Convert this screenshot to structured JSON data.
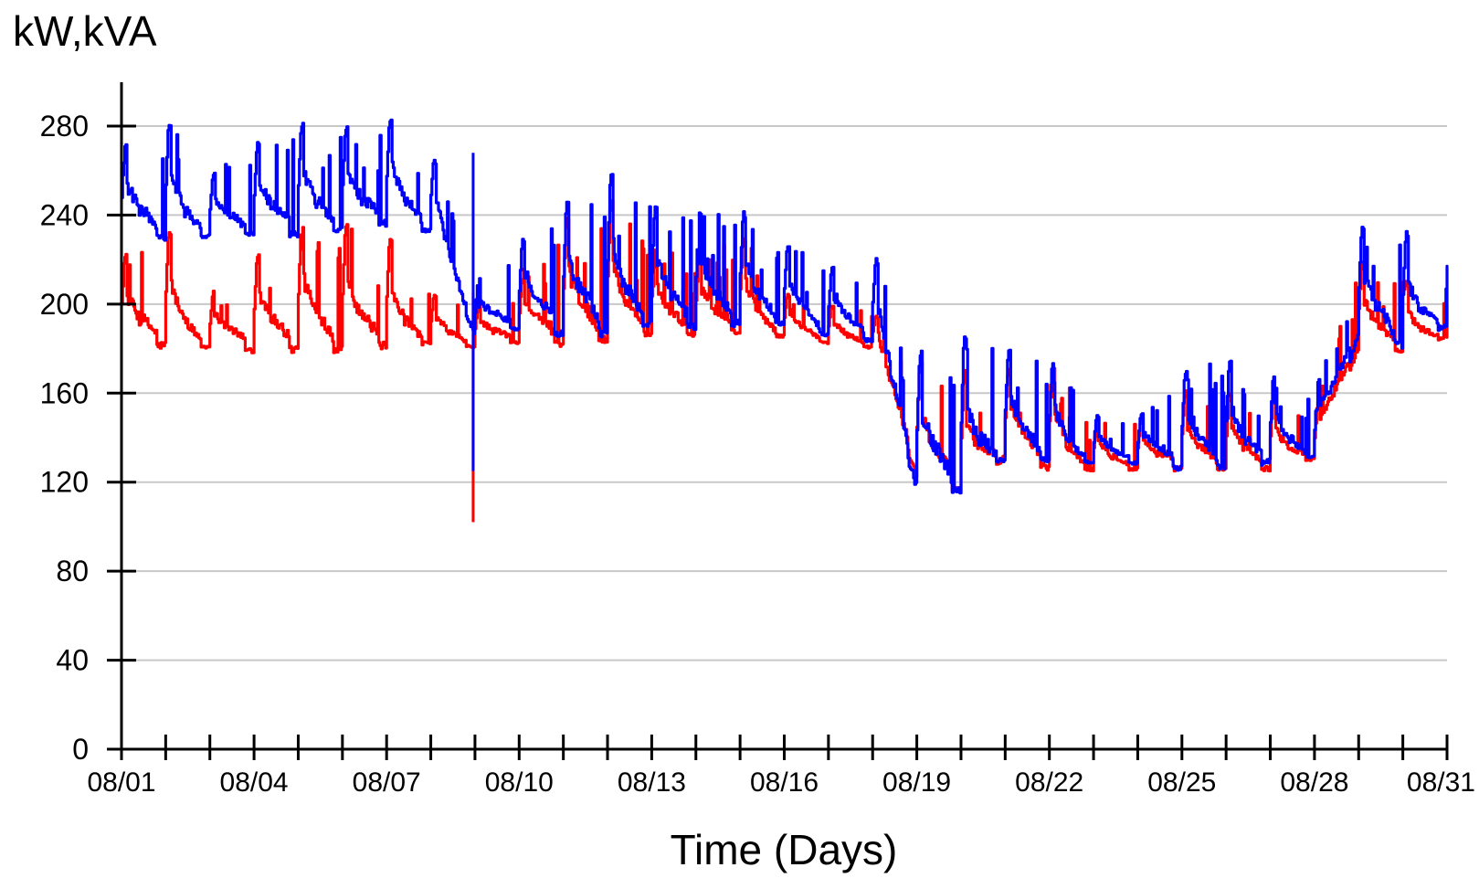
{
  "chart_data": {
    "type": "line",
    "title": "",
    "ylabel": "kW,kVA",
    "xlabel": "Time (Days)",
    "ylim": [
      0,
      300
    ],
    "yticks": [
      0,
      40,
      80,
      120,
      160,
      200,
      240,
      280
    ],
    "xlim": [
      "08/01",
      "08/31"
    ],
    "xtick_labels": [
      "08/01",
      "08/04",
      "08/07",
      "08/10",
      "08/13",
      "08/16",
      "08/19",
      "08/22",
      "08/25",
      "08/28",
      "08/31"
    ],
    "minor_tick_interval_days": 1,
    "grid": {
      "horizontal": true,
      "vertical": false
    },
    "legend": "none",
    "series": [
      {
        "color": "#ff0000",
        "x": [
          "08/01",
          "08/02",
          "08/03",
          "08/04",
          "08/05",
          "08/06",
          "08/07",
          "08/08",
          "08/09",
          "08/10",
          "08/11",
          "08/12",
          "08/13",
          "08/14",
          "08/15",
          "08/16",
          "08/17",
          "08/18",
          "08/19",
          "08/20",
          "08/21",
          "08/22",
          "08/23",
          "08/24",
          "08/25",
          "08/26",
          "08/27",
          "08/28",
          "08/29",
          "08/30",
          "08/31"
        ],
        "min": [
          178,
          180,
          180,
          178,
          178,
          178,
          180,
          182,
          180,
          182,
          180,
          182,
          186,
          185,
          186,
          185,
          182,
          180,
          120,
          115,
          130,
          125,
          125,
          125,
          125,
          125,
          125,
          130,
          180,
          178,
          185
        ],
        "max": [
          222,
          237,
          205,
          222,
          237,
          237,
          232,
          205,
          200,
          213,
          240,
          250,
          225,
          222,
          232,
          205,
          200,
          197,
          175,
          170,
          172,
          175,
          148,
          148,
          162,
          160,
          160,
          152,
          220,
          212,
          200
        ]
      },
      {
        "color": "#0000ff",
        "x": [
          "08/01",
          "08/02",
          "08/03",
          "08/04",
          "08/05",
          "08/06",
          "08/07",
          "08/08",
          "08/09",
          "08/10",
          "08/11",
          "08/12",
          "08/13",
          "08/14",
          "08/15",
          "08/16",
          "08/17",
          "08/18",
          "08/19",
          "08/20",
          "08/21",
          "08/22",
          "08/23",
          "08/24",
          "08/25",
          "08/26",
          "08/27",
          "08/28",
          "08/29",
          "08/30",
          "08/31"
        ],
        "min": [
          228,
          228,
          230,
          230,
          230,
          232,
          235,
          232,
          185,
          188,
          185,
          185,
          190,
          188,
          190,
          190,
          185,
          182,
          115,
          113,
          130,
          128,
          128,
          128,
          125,
          125,
          128,
          130,
          185,
          180,
          190
        ],
        "max": [
          272,
          285,
          258,
          272,
          282,
          280,
          285,
          270,
          210,
          228,
          246,
          262,
          244,
          242,
          243,
          228,
          216,
          224,
          178,
          188,
          180,
          177,
          150,
          150,
          170,
          175,
          170,
          160,
          235,
          234,
          218
        ]
      }
    ],
    "anomaly": {
      "day": "08/09",
      "red_min": 102,
      "blue_min": 125
    }
  }
}
